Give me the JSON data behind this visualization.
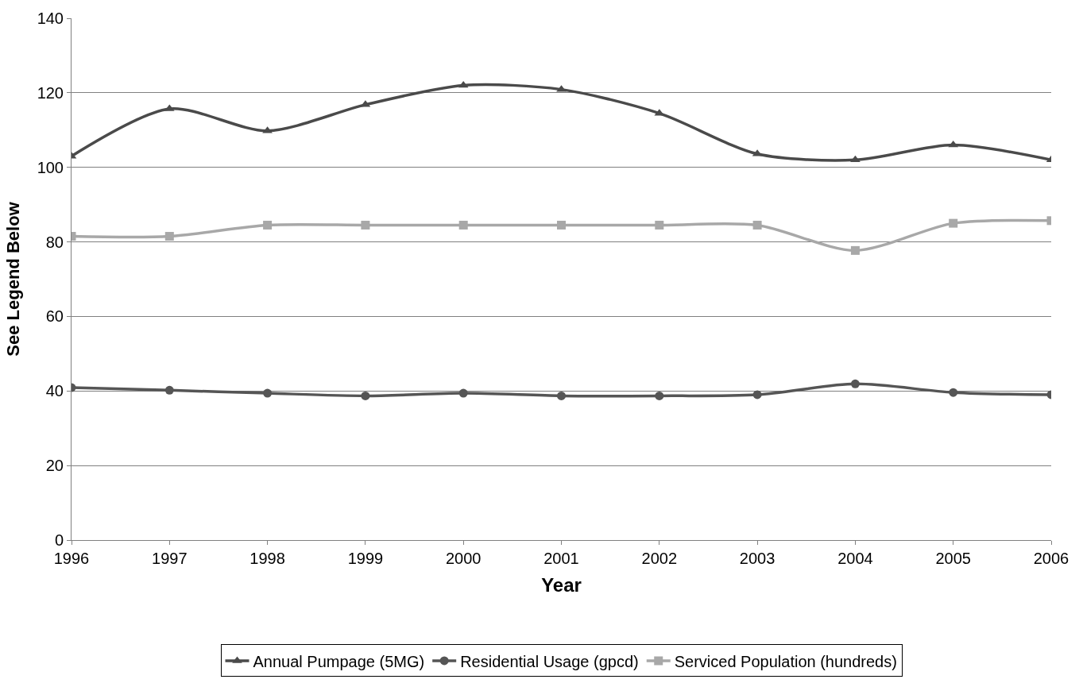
{
  "chart_data": {
    "type": "line",
    "xlabel": "Year",
    "ylabel": "See Legend Below",
    "categories": [
      "1996",
      "1997",
      "1998",
      "1999",
      "2000",
      "2001",
      "2002",
      "2003",
      "2004",
      "2005",
      "2006"
    ],
    "series": [
      {
        "name": "Annual Pumpage (5MG)",
        "color": "#4a4a4a",
        "marker": "triangle",
        "values": [
          103,
          115.7,
          109.8,
          116.8,
          122,
          120.9,
          114.5,
          103.6,
          102,
          106,
          102
        ]
      },
      {
        "name": "Residential Usage (gpcd)",
        "color": "#555555",
        "marker": "circle",
        "values": [
          40.9,
          40.2,
          39.4,
          38.7,
          39.4,
          38.7,
          38.7,
          39,
          41.9,
          39.6,
          39
        ]
      },
      {
        "name": "Serviced Population (hundreds)",
        "color": "#a8a8a8",
        "marker": "square",
        "values": [
          81.5,
          81.5,
          84.5,
          84.5,
          84.5,
          84.5,
          84.5,
          84.5,
          77.7,
          85,
          85.7
        ]
      }
    ],
    "ylim": [
      0,
      140
    ],
    "yticks": [
      0,
      20,
      40,
      60,
      80,
      100,
      120,
      140
    ],
    "grid": "y",
    "legend": "bottom",
    "line_style": "solid"
  }
}
